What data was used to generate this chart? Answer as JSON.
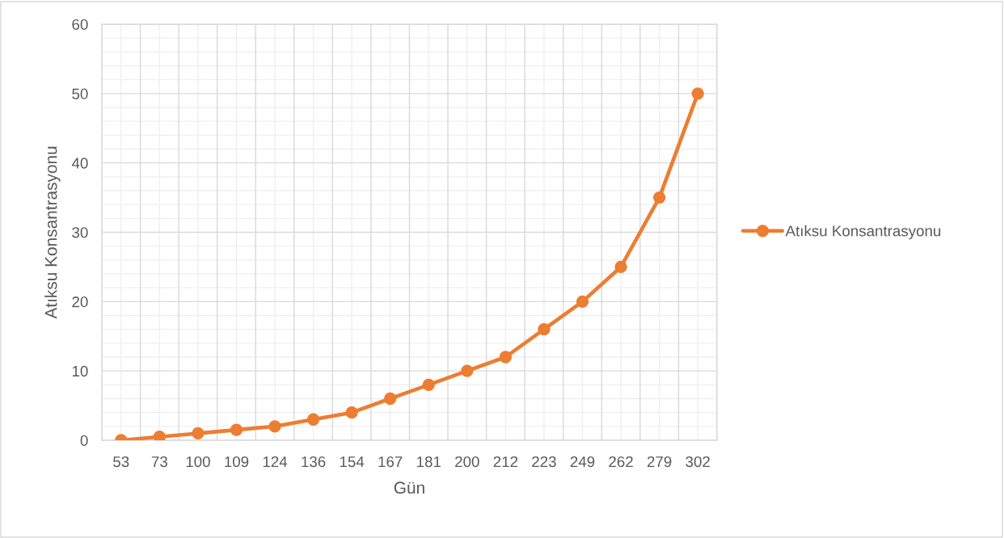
{
  "chart_data": {
    "type": "line",
    "xlabel": "Gün",
    "ylabel": "Atıksu Konsantrasyonu",
    "categories": [
      "53",
      "73",
      "100",
      "109",
      "124",
      "136",
      "154",
      "167",
      "181",
      "200",
      "212",
      "223",
      "249",
      "262",
      "279",
      "302"
    ],
    "series": [
      {
        "name": "Atıksu Konsantrasyonu",
        "color": "#ed7d31",
        "values": [
          0,
          0.5,
          1,
          1.5,
          2,
          3,
          4,
          6,
          8,
          10,
          12,
          16,
          20,
          25,
          35,
          50
        ]
      }
    ],
    "ylim": [
      0,
      60
    ],
    "yticks": [
      0,
      {
        "value": 2,
        "label": null
      },
      {
        "value": 4,
        "label": null
      },
      {
        "value": 6,
        "label": null
      },
      {
        "value": 8,
        "label": null
      },
      10,
      {
        "value": 12,
        "label": null
      },
      {
        "value": 14,
        "label": null
      },
      {
        "value": 16,
        "label": null
      },
      {
        "value": 18,
        "label": null
      },
      20,
      {
        "value": 22,
        "label": null
      },
      {
        "value": 24,
        "label": null
      },
      {
        "value": 26,
        "label": null
      },
      {
        "value": 28,
        "label": null
      },
      30,
      {
        "value": 32,
        "label": null
      },
      {
        "value": 34,
        "label": null
      },
      {
        "value": 36,
        "label": null
      },
      {
        "value": 38,
        "label": null
      },
      40,
      {
        "value": 42,
        "label": null
      },
      {
        "value": 44,
        "label": null
      },
      {
        "value": 46,
        "label": null
      },
      {
        "value": 48,
        "label": null
      },
      50,
      {
        "value": 52,
        "label": null
      },
      {
        "value": 54,
        "label": null
      },
      {
        "value": 56,
        "label": null
      },
      {
        "value": 58,
        "label": null
      },
      60
    ],
    "grid": true,
    "legend": "right",
    "marker": "circle",
    "line_style": "solid"
  }
}
